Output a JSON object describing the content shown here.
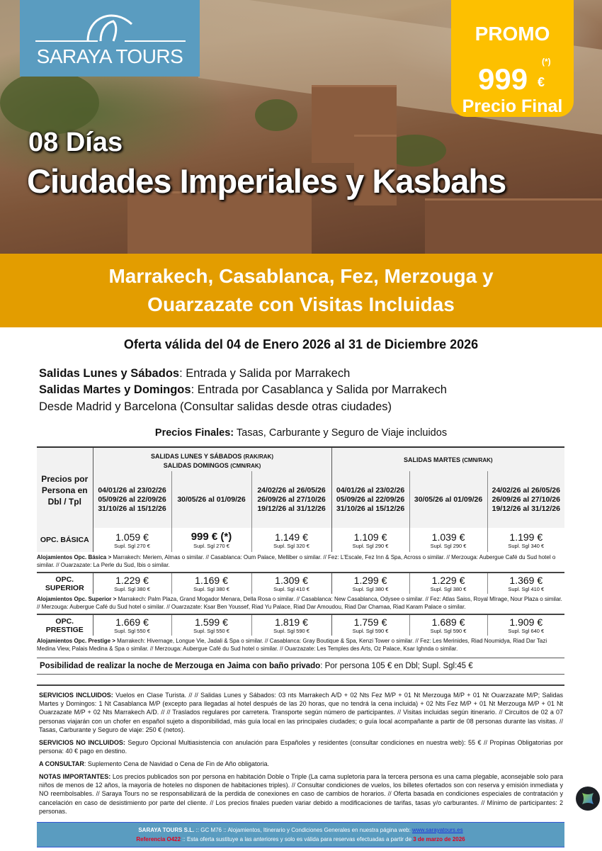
{
  "brand": {
    "name": "SARAYA TOURS",
    "color": "#5a9cc0"
  },
  "promo": {
    "label": "PROMO",
    "asterisk": "(*)",
    "price": "999",
    "currency": "€",
    "final": "Precio Final",
    "color": "#fdc000"
  },
  "hero": {
    "days": "08 Días",
    "title": "Ciudades Imperiales y Kasbahs"
  },
  "band": {
    "line1": "Marrakech, Casablanca, Fez, Merzouga y",
    "line2": "Ouarzazate con Visitas Incluidas",
    "color": "#e39d00"
  },
  "validity": "Oferta válida del 04 de Enero 2026 al 31 de Diciembre 2026",
  "departures": [
    {
      "bold": "Salidas Lunes y Sábados",
      "text": ": Entrada y Salida por Marrakech"
    },
    {
      "bold": "Salidas Martes y Domingos",
      "text": ": Entrada por Casablanca y Salida por Marrakech"
    },
    {
      "bold": "",
      "text": "Desde Madrid y Barcelona (Consultar salidas desde otras ciudades)"
    }
  ],
  "prices_intro": {
    "bold": "Precios Finales:",
    "text": " Tasas, Carburante y Seguro de Viaje incluidos"
  },
  "table": {
    "corner": "Precios por Persona en Dbl / Tpl",
    "group1": {
      "l1": "SALIDAS LUNES Y SÁBADOS",
      "l1s": "(RAK/RAK)",
      "l2": "SALIDAS DOMINGOS",
      "l2s": "(CMN/RAK)"
    },
    "group2": {
      "l1": "SALIDAS MARTES",
      "l1s": "(CMN/RAK)"
    },
    "periods": [
      [
        "04/01/26 al 23/02/26",
        "05/09/26 al 22/09/26",
        "31/10/26 al 15/12/26"
      ],
      [
        "30/05/26 al 01/09/26"
      ],
      [
        "24/02/26 al 26/05/26",
        "26/09/26 al 27/10/26",
        "19/12/26 al 31/12/26"
      ],
      [
        "04/01/26 al 23/02/26",
        "05/09/26 al 22/09/26",
        "31/10/26 al 15/12/26"
      ],
      [
        "30/05/26 al 01/09/26"
      ],
      [
        "24/02/26 al 26/05/26",
        "26/09/26 al 27/10/26",
        "19/12/26 al 31/12/26"
      ]
    ],
    "rows": [
      {
        "name": "OPC. BÁSICA",
        "prices": [
          "1.059 €",
          "999 € (*)",
          "1.149 €",
          "1.109 €",
          "1.039 €",
          "1.199 €"
        ],
        "supl": [
          "Supl. Sgl 270 €",
          "Supl. Sgl 270 €",
          "Supl. Sgl 320 €",
          "Supl. Sgl 290 €",
          "Supl. Sgl 290 €",
          "Supl. Sgl 340 €"
        ],
        "aloj_label": "Alojamientos Opc. Básica >",
        "aloj": " Marrakech: Meriem, Almas o similar. // Casablanca: Oum Palace, Melliber o similar. // Fez: L'Escale, Fez Inn & Spa, Across o similar. // Merzouga: Aubergue Café du Sud hotel o similar. // Ouarzazate: La Perle du Sud, Ibis o similar."
      },
      {
        "name": "OPC. SUPERIOR",
        "prices": [
          "1.229 €",
          "1.169 €",
          "1.309 €",
          "1.299 €",
          "1.229 €",
          "1.369 €"
        ],
        "supl": [
          "Supl. Sgl 380 €",
          "Supl. Sgl 380 €",
          "Supl. Sgl 410 €",
          "Supl. Sgl 380 €",
          "Supl. Sgl 380 €",
          "Supl. Sgl 410 €"
        ],
        "aloj_label": "Alojamientos Opc. Superior >",
        "aloj": " Marrakech: Palm Plaza, Grand Mogador Menara, Della Rosa o similar. // Casablanca: New Casablanca, Odysee o similar. // Fez: Atlas Saiss, Royal MIrage, Nour Plaza o similar. // Merzouga: Aubergue Café du Sud hotel o similar. // Ouarzazate: Ksar Ben Youssef, Riad Yu Palace, Riad Dar Amoudou, Riad Dar Chamaa, Riad Karam Palace o similar."
      },
      {
        "name": "OPC. PRESTIGE",
        "prices": [
          "1.669 €",
          "1.599 €",
          "1.819 €",
          "1.759 €",
          "1.689 €",
          "1.909 €"
        ],
        "supl": [
          "Supl. Sgl 550 €",
          "Supl. Sgl 550 €",
          "Supl. Sgl 590 €",
          "Supl. Sgl 590 €",
          "Supl. Sgl 590 €",
          "Supl. Sgl 640 €"
        ],
        "aloj_label": "Alojamientos Opc. Prestige >",
        "aloj": " Marrakech: Hivernage, Longue Vie, Jadali & Spa o similar. // Casablanca: Gray Boutique & Spa, Kenzi Tower o similar. // Fez:  Les Merinides, Riad Noumidya, Riad Dar Tazi Medina View, Palais Medina & Spa o similar. // Merzouga: Aubergue Café du Sud hotel o similar.  // Ouarzazate: Les Temples des Arts, Oz Palace, Ksar Ighnda o similar."
      }
    ]
  },
  "jaima": {
    "bold": "Posibilidad de realizar la noche de Merzouga en Jaima con baño privado",
    "text": ": Por persona 105 € en Dbl; Supl. Sgl:45 €"
  },
  "services": [
    {
      "bold": "SERVICIOS INCLUIDOS:",
      "text": " Vuelos en Clase Turista. // // Salidas Lunes y Sábados: 03 nts Marrakech A/D + 02 Nts Fez M/P + 01 Nt Merzouga M/P + 01 Nt Ouarzazate M/P; Salidas Martes y Domingos: 1 Nt Casablanca M/P (excepto para llegadas al hotel después de las 20 horas, que no tendrá la cena incluida) + 02 Nts Fez M/P + 01 Nt Merzouga M/P + 01 Nt Ouarzazate M/P + 02 Nts Marrakech A/D. // // Traslados regulares por carretera. Transporte según número de participantes. // Visitas incluidas según itinerario. // Circuitos de 02 a 07 personas viajarán con un chofer en español sujeto a disponibilidad, más guía local en las principales ciudades; o guía local acompañante a partir de 08 personas durante las visitas. // Tasas, Carburante y Seguro de viaje: 250 € (netos)."
    },
    {
      "bold": "SERVICIOS NO INCLUIDOS:",
      "text": " Seguro Opcional Multiasistencia con anulación para Españoles y residentes (consultar condiciones en nuestra web): 55 € // Propinas Obligatorias por persona: 40 €  pago en destino."
    },
    {
      "bold": "A CONSULTAR",
      "text": ": Suplemento Cena de Navidad o Cena de Fin de Año obligatoria."
    },
    {
      "bold": "NOTAS IMPORTANTES:",
      "text": " Los precios publicados son por persona en habitación Doble o Triple (La cama supletoria para la tercera persona es una cama plegable, aconsejable solo para niños de menos de 12 años, la mayoría de hoteles no disponen de habitaciones triples). // Consultar condiciones de vuelos, los billetes ofertados son con reserva y emisión inmediata y NO reembolsables. // Saraya Tours no se responsabilizará de la perdida de conexiones en caso de cambios de horarios. // Oferta basada en condiciones especiales de contratación y cancelación en caso de desistimiento por parte del cliente. // Los precios finales pueden variar debido a modificaciones de tarifas, tasas y/o carburantes. // Mínimo de participantes: 2 personas."
    }
  ],
  "footer": {
    "company": "SARAYA TOURS S.L.",
    "mid": " :: GC M76 ::  Alojamientos, Itinerario y Condiciones Generales en nuestra página web:  ",
    "link": "www.sarayatours.es",
    "ref": "Referencia O422",
    "ref_text": " :: Esta oferta sustituye a las anteriores y solo es válida para reservas efectuadas a partir de ",
    "date": "3 de marzo de 2026"
  }
}
